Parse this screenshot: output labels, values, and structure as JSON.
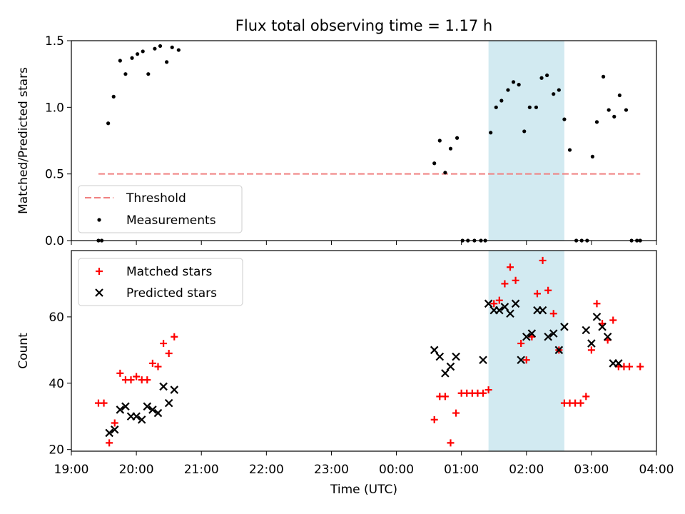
{
  "title": "Flux total observing time = 1.17 h",
  "colors": {
    "threshold": "#f08080",
    "measurements": "#000000",
    "matched": "#ff0000",
    "predicted": "#000000",
    "span": "#add8e6"
  },
  "chart_data": [
    {
      "type": "scatter",
      "ylabel": "Matched/Predicted stars",
      "ylim": [
        0,
        1.5
      ],
      "yticks": [
        "0.0",
        "0.5",
        "1.0",
        "1.5"
      ],
      "xlim": [
        "19:00",
        "04:00"
      ],
      "highlight_span": [
        "01:25",
        "02:35"
      ],
      "legend_position": "lower-left",
      "series": [
        {
          "name": "Threshold",
          "type": "line",
          "x": [
            "19:25",
            "03:45"
          ],
          "y": [
            0.5,
            0.5
          ]
        },
        {
          "name": "Measurements",
          "type": "scatter",
          "x": [
            "19:25",
            "19:28",
            "19:34",
            "19:39",
            "19:45",
            "19:50",
            "19:56",
            "20:01",
            "20:06",
            "20:11",
            "20:17",
            "20:22",
            "20:28",
            "20:33",
            "20:39",
            "00:35",
            "00:40",
            "00:45",
            "00:50",
            "00:56",
            "01:01",
            "01:06",
            "01:12",
            "01:18",
            "01:22",
            "01:27",
            "01:32",
            "01:37",
            "01:43",
            "01:48",
            "01:53",
            "01:58",
            "02:03",
            "02:09",
            "02:14",
            "02:19",
            "02:25",
            "02:30",
            "02:35",
            "02:40",
            "02:46",
            "02:51",
            "02:56",
            "03:01",
            "03:05",
            "03:11",
            "03:16",
            "03:21",
            "03:26",
            "03:32",
            "03:37",
            "03:42",
            "03:45"
          ],
          "y": [
            0.0,
            0.0,
            0.88,
            1.08,
            1.35,
            1.25,
            1.37,
            1.4,
            1.42,
            1.25,
            1.44,
            1.46,
            1.34,
            1.45,
            1.43,
            0.58,
            0.75,
            0.51,
            0.69,
            0.77,
            0.0,
            0.0,
            0.0,
            0.0,
            0.0,
            0.81,
            1.0,
            1.05,
            1.13,
            1.19,
            1.17,
            0.82,
            1.0,
            1.0,
            1.22,
            1.24,
            1.1,
            1.13,
            0.91,
            0.68,
            0.0,
            0.0,
            0.0,
            0.63,
            0.89,
            1.23,
            0.98,
            0.93,
            1.09,
            0.98,
            0.0,
            0.0,
            0.0
          ]
        }
      ]
    },
    {
      "type": "scatter",
      "ylabel": "Count",
      "xlabel": "Time (UTC)",
      "ylim": [
        19.5,
        80
      ],
      "yticks": [
        "20",
        "40",
        "60"
      ],
      "xlim": [
        "19:00",
        "04:00"
      ],
      "xticks": [
        "19:00",
        "20:00",
        "21:00",
        "22:00",
        "23:00",
        "00:00",
        "01:00",
        "02:00",
        "03:00",
        "04:00"
      ],
      "highlight_span": [
        "01:25",
        "02:35"
      ],
      "legend_position": "upper-left",
      "series": [
        {
          "name": "Matched stars",
          "marker": "+",
          "x": [
            "19:25",
            "19:30",
            "19:35",
            "19:40",
            "19:45",
            "19:50",
            "19:55",
            "20:00",
            "20:05",
            "20:10",
            "20:15",
            "20:20",
            "20:25",
            "20:30",
            "20:35",
            "00:35",
            "00:40",
            "00:45",
            "00:50",
            "00:55",
            "01:00",
            "01:05",
            "01:10",
            "01:15",
            "01:20",
            "01:25",
            "01:30",
            "01:35",
            "01:40",
            "01:45",
            "01:50",
            "01:55",
            "02:00",
            "02:05",
            "02:10",
            "02:15",
            "02:20",
            "02:25",
            "02:30",
            "02:35",
            "02:40",
            "02:45",
            "02:50",
            "02:55",
            "03:00",
            "03:05",
            "03:10",
            "03:15",
            "03:20",
            "03:25",
            "03:30",
            "03:35",
            "03:45"
          ],
          "y": [
            34,
            34,
            22,
            28,
            43,
            41,
            41,
            42,
            41,
            41,
            46,
            45,
            52,
            49,
            54,
            29,
            36,
            36,
            22,
            31,
            37,
            37,
            37,
            37,
            37,
            38,
            64,
            65,
            70,
            75,
            71,
            52,
            47,
            54,
            67,
            77,
            68,
            61,
            50,
            34,
            34,
            34,
            34,
            36,
            50,
            64,
            58,
            53,
            59,
            45,
            45,
            45,
            45
          ]
        },
        {
          "name": "Predicted stars",
          "marker": "x",
          "x": [
            "19:35",
            "19:40",
            "19:45",
            "19:50",
            "19:55",
            "20:00",
            "20:05",
            "20:10",
            "20:15",
            "20:20",
            "20:25",
            "20:30",
            "20:35",
            "00:35",
            "00:40",
            "00:45",
            "00:50",
            "00:55",
            "01:20",
            "01:25",
            "01:30",
            "01:35",
            "01:40",
            "01:45",
            "01:50",
            "01:55",
            "02:00",
            "02:05",
            "02:10",
            "02:15",
            "02:20",
            "02:25",
            "02:30",
            "02:35",
            "02:55",
            "03:00",
            "03:05",
            "03:10",
            "03:15",
            "03:20",
            "03:25"
          ],
          "y": [
            25,
            26,
            32,
            33,
            30,
            30,
            29,
            33,
            32,
            31,
            39,
            34,
            38,
            50,
            48,
            43,
            45,
            48,
            47,
            64,
            62,
            62,
            63,
            61,
            64,
            47,
            54,
            55,
            62,
            62,
            54,
            55,
            50,
            57,
            56,
            52,
            60,
            57,
            54,
            46,
            46
          ]
        }
      ]
    }
  ]
}
